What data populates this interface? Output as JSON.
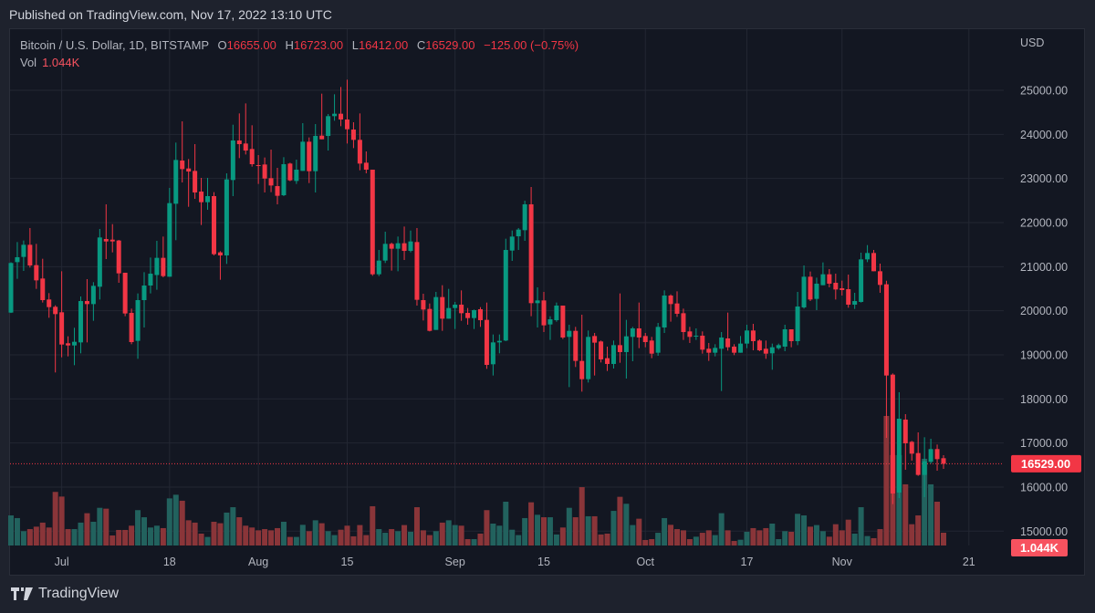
{
  "header": {
    "published": "Published on TradingView.com, Nov 17, 2022 13:10 UTC"
  },
  "legend": {
    "symbol": "Bitcoin / U.S. Dollar, 1D, BITSTAMP",
    "o_label": "O",
    "o": "16655.00",
    "h_label": "H",
    "h": "16723.00",
    "l_label": "L",
    "l": "16412.00",
    "c_label": "C",
    "c": "16529.00",
    "change": "−125.00 (−0.75%)",
    "vol_label": "Vol",
    "vol": "1.044K"
  },
  "footer": {
    "brand": "TradingView",
    "logo_icon": "tradingview-logo-icon"
  },
  "colors": {
    "up": "#089981",
    "down": "#f23645",
    "vol_up": "#22625e",
    "vol_down": "#8a3539",
    "background": "#131722"
  },
  "chart_data": {
    "type": "candlestick",
    "currency": "USD",
    "ylim": [
      15000,
      25000
    ],
    "y_ticks": [
      "25000.00",
      "24000.00",
      "23000.00",
      "22000.00",
      "21000.00",
      "20000.00",
      "19000.00",
      "18000.00",
      "17000.00",
      "16000.00",
      "15000.00"
    ],
    "x_ticks": [
      {
        "label": "Jul",
        "date": "2022-07-01"
      },
      {
        "label": "18",
        "date": "2022-07-18"
      },
      {
        "label": "Aug",
        "date": "2022-08-01"
      },
      {
        "label": "15",
        "date": "2022-08-15"
      },
      {
        "label": "Sep",
        "date": "2022-09-01"
      },
      {
        "label": "15",
        "date": "2022-09-15"
      },
      {
        "label": "Oct",
        "date": "2022-10-01"
      },
      {
        "label": "17",
        "date": "2022-10-17"
      },
      {
        "label": "Nov",
        "date": "2022-11-01"
      },
      {
        "label": "21",
        "date": "2022-11-21"
      }
    ],
    "last_price_label": "16529.00",
    "last_volume_label": "1.044K",
    "grid": true,
    "columns": [
      "date",
      "open",
      "high",
      "low",
      "close",
      "volume_k"
    ],
    "ohlcv": [
      [
        "2022-06-23",
        19958,
        21100,
        19950,
        21083,
        2.46
      ],
      [
        "2022-06-24",
        21103,
        21558,
        20724,
        21214,
        2.24
      ],
      [
        "2022-06-25",
        21221,
        21593,
        20903,
        21496,
        1.17
      ],
      [
        "2022-06-26",
        21496,
        21876,
        20979,
        21027,
        1.34
      ],
      [
        "2022-06-27",
        21034,
        21517,
        20496,
        20689,
        1.54
      ],
      [
        "2022-06-28",
        20731,
        21179,
        20186,
        20241,
        1.87
      ],
      [
        "2022-06-29",
        20255,
        20400,
        19841,
        20082,
        1.47
      ],
      [
        "2022-06-30",
        20089,
        20124,
        18600,
        19924,
        4.38
      ],
      [
        "2022-07-01",
        19965,
        20896,
        18944,
        19234,
        4.0
      ],
      [
        "2022-07-02",
        19262,
        19420,
        18965,
        19213,
        1.34
      ],
      [
        "2022-07-03",
        19213,
        19614,
        18765,
        19296,
        1.34
      ],
      [
        "2022-07-04",
        19282,
        20324,
        19034,
        20220,
        1.87
      ],
      [
        "2022-07-05",
        20220,
        20717,
        19282,
        20151,
        2.64
      ],
      [
        "2022-07-06",
        20151,
        20648,
        19772,
        20565,
        1.94
      ],
      [
        "2022-07-07",
        20545,
        21855,
        20255,
        21662,
        3.08
      ],
      [
        "2022-07-08",
        21627,
        22414,
        21172,
        21572,
        3.01
      ],
      [
        "2022-07-09",
        21613,
        21965,
        21324,
        21572,
        0.82
      ],
      [
        "2022-07-10",
        21593,
        21607,
        20634,
        20848,
        1.27
      ],
      [
        "2022-07-11",
        20862,
        20862,
        19876,
        19938,
        1.27
      ],
      [
        "2022-07-12",
        19951,
        20048,
        19241,
        19289,
        1.62
      ],
      [
        "2022-07-13",
        19317,
        20393,
        18910,
        20241,
        2.89
      ],
      [
        "2022-07-14",
        20241,
        20875,
        19620,
        20572,
        2.31
      ],
      [
        "2022-07-15",
        20572,
        21207,
        20393,
        20841,
        1.47
      ],
      [
        "2022-07-16",
        20810,
        21586,
        20476,
        21200,
        1.62
      ],
      [
        "2022-07-17",
        21200,
        21683,
        20758,
        20786,
        1.42
      ],
      [
        "2022-07-18",
        20772,
        22786,
        20772,
        22441,
        3.85
      ],
      [
        "2022-07-19",
        22427,
        23814,
        21600,
        23420,
        4.15
      ],
      [
        "2022-07-20",
        23407,
        24296,
        22910,
        23213,
        3.66
      ],
      [
        "2022-07-21",
        23227,
        23441,
        22358,
        23158,
        2.06
      ],
      [
        "2022-07-22",
        23172,
        23779,
        22538,
        22683,
        1.87
      ],
      [
        "2022-07-23",
        22703,
        23014,
        21945,
        22462,
        0.97
      ],
      [
        "2022-07-24",
        22462,
        23014,
        22290,
        22600,
        0.7
      ],
      [
        "2022-07-25",
        22600,
        22690,
        21255,
        21283,
        1.94
      ],
      [
        "2022-07-26",
        21324,
        21351,
        20703,
        21255,
        1.82
      ],
      [
        "2022-07-27",
        21255,
        23117,
        21062,
        22979,
        2.69
      ],
      [
        "2022-07-28",
        22965,
        24220,
        22600,
        23862,
        3.13
      ],
      [
        "2022-07-29",
        23862,
        24476,
        23462,
        23779,
        2.31
      ],
      [
        "2022-07-30",
        23793,
        24703,
        23544,
        23634,
        1.62
      ],
      [
        "2022-07-31",
        23669,
        24207,
        23269,
        23324,
        1.47
      ],
      [
        "2022-08-01",
        23303,
        23531,
        22876,
        23290,
        1.24
      ],
      [
        "2022-08-02",
        23317,
        23476,
        22683,
        22999,
        1.34
      ],
      [
        "2022-08-03",
        23007,
        23655,
        22690,
        22841,
        1.24
      ],
      [
        "2022-08-04",
        22827,
        23241,
        22414,
        22607,
        1.42
      ],
      [
        "2022-08-05",
        22620,
        23483,
        22600,
        23324,
        1.94
      ],
      [
        "2022-08-06",
        23338,
        23358,
        22938,
        22958,
        0.7
      ],
      [
        "2022-08-07",
        22944,
        23427,
        22876,
        23200,
        0.7
      ],
      [
        "2022-08-08",
        23172,
        24255,
        23172,
        23834,
        1.69
      ],
      [
        "2022-08-09",
        23834,
        23931,
        22896,
        23165,
        1.17
      ],
      [
        "2022-08-10",
        23165,
        24234,
        22683,
        23965,
        2.06
      ],
      [
        "2022-08-11",
        23972,
        24924,
        23889,
        23889,
        1.82
      ],
      [
        "2022-08-12",
        23965,
        24462,
        23634,
        24414,
        1.17
      ],
      [
        "2022-08-13",
        24414,
        24910,
        24310,
        24469,
        0.85
      ],
      [
        "2022-08-14",
        24469,
        25076,
        24186,
        24338,
        1.29
      ],
      [
        "2022-08-15",
        24338,
        25241,
        23793,
        24117,
        1.62
      ],
      [
        "2022-08-16",
        24110,
        24276,
        23689,
        23876,
        0.75
      ],
      [
        "2022-08-17",
        23876,
        24476,
        23186,
        23338,
        1.67
      ],
      [
        "2022-08-18",
        23358,
        23614,
        23117,
        23200,
        0.85
      ],
      [
        "2022-08-19",
        23200,
        23200,
        20793,
        20827,
        3.21
      ],
      [
        "2022-08-20",
        20827,
        21379,
        20786,
        21138,
        1.34
      ],
      [
        "2022-08-21",
        21138,
        21793,
        21083,
        21517,
        1.04
      ],
      [
        "2022-08-22",
        21517,
        21545,
        20910,
        21407,
        1.34
      ],
      [
        "2022-08-23",
        21407,
        21683,
        20896,
        21531,
        1.17
      ],
      [
        "2022-08-24",
        21531,
        21910,
        21151,
        21358,
        1.67
      ],
      [
        "2022-08-25",
        21358,
        21820,
        21324,
        21572,
        1.12
      ],
      [
        "2022-08-26",
        21558,
        21876,
        20117,
        20248,
        3.13
      ],
      [
        "2022-08-27",
        20241,
        20386,
        19779,
        20027,
        1.24
      ],
      [
        "2022-08-28",
        20041,
        20165,
        19531,
        19544,
        0.85
      ],
      [
        "2022-08-29",
        19565,
        20427,
        19565,
        20310,
        1.17
      ],
      [
        "2022-08-30",
        20310,
        20579,
        19544,
        19820,
        1.87
      ],
      [
        "2022-08-31",
        19820,
        20496,
        19820,
        20062,
        2.06
      ],
      [
        "2022-09-01",
        20062,
        20200,
        19586,
        20138,
        1.67
      ],
      [
        "2022-09-02",
        20138,
        20462,
        19772,
        19944,
        1.62
      ],
      [
        "2022-09-03",
        19951,
        20062,
        19683,
        19834,
        0.52
      ],
      [
        "2022-09-04",
        19834,
        20027,
        19586,
        20014,
        0.52
      ],
      [
        "2022-09-05",
        20034,
        20082,
        19634,
        19786,
        0.97
      ],
      [
        "2022-09-06",
        19793,
        20186,
        18682,
        18772,
        2.89
      ],
      [
        "2022-09-07",
        18786,
        19462,
        18531,
        19282,
        1.79
      ],
      [
        "2022-09-08",
        19282,
        19462,
        19034,
        19317,
        1.62
      ],
      [
        "2022-09-09",
        19324,
        21634,
        19310,
        21379,
        3.58
      ],
      [
        "2022-09-10",
        21365,
        21820,
        21131,
        21682,
        1.29
      ],
      [
        "2022-09-11",
        21689,
        21876,
        21379,
        21841,
        0.85
      ],
      [
        "2022-09-12",
        21827,
        22496,
        21586,
        22414,
        2.24
      ],
      [
        "2022-09-13",
        22414,
        22807,
        19876,
        20172,
        3.53
      ],
      [
        "2022-09-14",
        20172,
        20531,
        19620,
        20234,
        2.51
      ],
      [
        "2022-09-15",
        20234,
        20427,
        19517,
        19669,
        2.31
      ],
      [
        "2022-09-16",
        19689,
        19875,
        19338,
        19806,
        2.31
      ],
      [
        "2022-09-17",
        19786,
        20186,
        19751,
        20117,
        0.9
      ],
      [
        "2022-09-18",
        20117,
        20117,
        19358,
        19393,
        1.47
      ],
      [
        "2022-09-19",
        19407,
        19682,
        18268,
        19544,
        3.08
      ],
      [
        "2022-09-20",
        19544,
        19634,
        18724,
        18862,
        2.31
      ],
      [
        "2022-09-21",
        18862,
        19910,
        18165,
        18448,
        4.77
      ],
      [
        "2022-09-22",
        18448,
        19552,
        18372,
        19407,
        2.39
      ],
      [
        "2022-09-23",
        19427,
        19496,
        18531,
        19276,
        2.39
      ],
      [
        "2022-09-24",
        19303,
        19324,
        18827,
        18896,
        0.9
      ],
      [
        "2022-09-25",
        18924,
        19186,
        18634,
        18793,
        0.97
      ],
      [
        "2022-09-26",
        18793,
        19324,
        18689,
        19220,
        2.83
      ],
      [
        "2022-09-27",
        19220,
        20393,
        18820,
        19062,
        3.98
      ],
      [
        "2022-09-28",
        19062,
        19793,
        18462,
        19420,
        3.41
      ],
      [
        "2022-09-29",
        19407,
        19634,
        18855,
        19600,
        1.67
      ],
      [
        "2022-09-30",
        19600,
        20186,
        19151,
        19393,
        2.19
      ],
      [
        "2022-10-01",
        19427,
        19496,
        19172,
        19289,
        0.45
      ],
      [
        "2022-10-02",
        19324,
        19407,
        18924,
        19027,
        0.52
      ],
      [
        "2022-10-03",
        19048,
        19724,
        18979,
        19634,
        1.04
      ],
      [
        "2022-10-04",
        19620,
        20462,
        19496,
        20345,
        2.24
      ],
      [
        "2022-10-05",
        20345,
        20372,
        19752,
        20151,
        1.69
      ],
      [
        "2022-10-06",
        20165,
        20441,
        19862,
        19931,
        1.34
      ],
      [
        "2022-10-07",
        19944,
        20048,
        19338,
        19517,
        1.24
      ],
      [
        "2022-10-08",
        19531,
        19634,
        19269,
        19407,
        0.52
      ],
      [
        "2022-10-09",
        19420,
        19600,
        19338,
        19434,
        0.72
      ],
      [
        "2022-10-10",
        19434,
        19531,
        19027,
        19117,
        1.04
      ],
      [
        "2022-10-11",
        19138,
        19269,
        18862,
        19048,
        1.24
      ],
      [
        "2022-10-12",
        19048,
        19241,
        18965,
        19158,
        0.85
      ],
      [
        "2022-10-13",
        19138,
        19517,
        18179,
        19393,
        2.64
      ],
      [
        "2022-10-14",
        19372,
        19958,
        19096,
        19172,
        1.24
      ],
      [
        "2022-10-15",
        19186,
        19241,
        18993,
        19048,
        0.37
      ],
      [
        "2022-10-16",
        19048,
        19427,
        19048,
        19255,
        0.47
      ],
      [
        "2022-10-17",
        19255,
        19682,
        19151,
        19552,
        1.12
      ],
      [
        "2022-10-18",
        19552,
        19703,
        19103,
        19310,
        1.42
      ],
      [
        "2022-10-19",
        19324,
        19351,
        19082,
        19103,
        1.24
      ],
      [
        "2022-10-20",
        19138,
        19324,
        18910,
        19027,
        1.42
      ],
      [
        "2022-10-21",
        19034,
        19255,
        18662,
        19172,
        1.79
      ],
      [
        "2022-10-22",
        19151,
        19255,
        19117,
        19220,
        0.52
      ],
      [
        "2022-10-23",
        19186,
        19682,
        19082,
        19579,
        1.17
      ],
      [
        "2022-10-24",
        19579,
        19579,
        19172,
        19310,
        1.12
      ],
      [
        "2022-10-25",
        19310,
        20427,
        19220,
        20096,
        2.59
      ],
      [
        "2022-10-26",
        20076,
        21027,
        20048,
        20772,
        2.46
      ],
      [
        "2022-10-27",
        20772,
        20889,
        20220,
        20255,
        1.54
      ],
      [
        "2022-10-28",
        20269,
        20751,
        20014,
        20614,
        1.67
      ],
      [
        "2022-10-29",
        20579,
        21096,
        20579,
        20827,
        1.17
      ],
      [
        "2022-10-30",
        20827,
        20945,
        20531,
        20614,
        0.72
      ],
      [
        "2022-10-31",
        20634,
        20841,
        20255,
        20482,
        1.74
      ],
      [
        "2022-11-01",
        20510,
        20683,
        20345,
        20469,
        1.24
      ],
      [
        "2022-11-02",
        20489,
        20820,
        20069,
        20138,
        2.11
      ],
      [
        "2022-11-03",
        20138,
        20407,
        20041,
        20220,
        0.97
      ],
      [
        "2022-11-04",
        20200,
        21317,
        20186,
        21165,
        3.13
      ],
      [
        "2022-11-05",
        21165,
        21489,
        21103,
        21310,
        0.77
      ],
      [
        "2022-11-06",
        21310,
        21379,
        20896,
        20896,
        0.6
      ],
      [
        "2022-11-07",
        20896,
        21069,
        20407,
        20586,
        1.34
      ],
      [
        "2022-11-08",
        20600,
        20682,
        17117,
        18531,
        10.59
      ],
      [
        "2022-11-09",
        18551,
        18579,
        15614,
        15855,
        7.39
      ],
      [
        "2022-11-10",
        15876,
        18152,
        15751,
        17551,
        7.39
      ],
      [
        "2022-11-11",
        17531,
        17655,
        16393,
        16993,
        5.0
      ],
      [
        "2022-11-12",
        17027,
        17048,
        16600,
        16758,
        1.74
      ],
      [
        "2022-11-13",
        16772,
        17241,
        16255,
        16276,
        2.46
      ],
      [
        "2022-11-14",
        16276,
        17131,
        15772,
        16586,
        7.09
      ],
      [
        "2022-11-15",
        16572,
        17096,
        16531,
        16862,
        5.0
      ],
      [
        "2022-11-16",
        16862,
        16965,
        16372,
        16634,
        3.58
      ],
      [
        "2022-11-17",
        16655,
        16723,
        16412,
        16529,
        1.044
      ]
    ]
  }
}
